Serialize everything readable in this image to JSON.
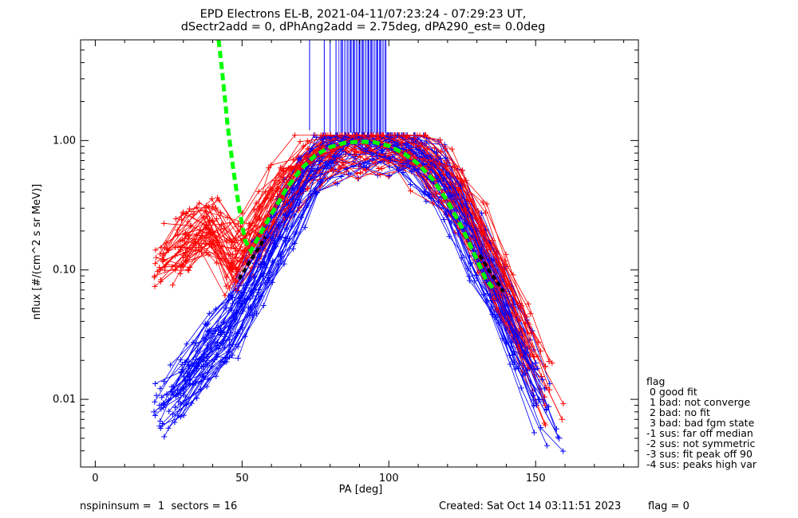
{
  "chart_data": {
    "type": "scatter",
    "title": [
      "EPD Electrons EL-B, 2021-04-11/07:23:24 - 07:29:23 UT,",
      "dSectr2add = 0, dPhAng2add = 2.75deg, dPA290_est=    0.0deg"
    ],
    "xlabel": "PA [deg]",
    "ylabel": "nflux [#/(cm^2 s sr MeV)]",
    "xlim": [
      -5,
      185
    ],
    "ylim": [
      0.003,
      6
    ],
    "yscale": "log",
    "xticks": [
      {
        "value": 0,
        "label": "0"
      },
      {
        "value": 50,
        "label": "50"
      },
      {
        "value": 100,
        "label": "100"
      },
      {
        "value": 150,
        "label": "150"
      }
    ],
    "yticks": [
      {
        "value": 0.01,
        "label": "0.01"
      },
      {
        "value": 0.1,
        "label": "0.10"
      },
      {
        "value": 1,
        "label": "1.00"
      }
    ],
    "grid": false,
    "series": [
      {
        "role": "fit_red",
        "color": "#ff0000",
        "marker": "+",
        "x": [
          22,
          40,
          48,
          55,
          62,
          70,
          78,
          85,
          92,
          100,
          107,
          115,
          123,
          130,
          137,
          145,
          152,
          159
        ],
        "y": [
          0.1,
          0.24,
          0.1,
          0.18,
          0.35,
          0.6,
          0.85,
          0.93,
          0.96,
          0.92,
          0.84,
          0.62,
          0.38,
          0.2,
          0.08,
          0.035,
          0.015,
          0.007
        ]
      },
      {
        "role": "fit_blue",
        "color": "#0000ff",
        "marker": "+",
        "x": [
          20,
          30,
          38,
          46,
          54,
          61,
          69,
          77,
          84,
          91,
          99,
          106,
          114,
          122,
          129,
          137,
          144,
          151,
          158
        ],
        "y": [
          0.008,
          0.012,
          0.02,
          0.035,
          0.07,
          0.16,
          0.35,
          0.7,
          0.92,
          0.98,
          0.95,
          0.85,
          0.62,
          0.34,
          0.15,
          0.06,
          0.025,
          0.01,
          0.005
        ]
      },
      {
        "role": "model_fit",
        "color": "#00ff00",
        "style": "dashed",
        "x": [
          42,
          43,
          44,
          45,
          47,
          49,
          51,
          53,
          55,
          60,
          65,
          70,
          75,
          80,
          85,
          90,
          95,
          100,
          105,
          110,
          115,
          120,
          125,
          130,
          133,
          136
        ],
        "y": [
          6.0,
          3.8,
          2.3,
          1.35,
          0.6,
          0.3,
          0.17,
          0.14,
          0.17,
          0.27,
          0.42,
          0.6,
          0.77,
          0.89,
          0.96,
          0.98,
          0.97,
          0.91,
          0.8,
          0.66,
          0.5,
          0.34,
          0.21,
          0.12,
          0.085,
          0.07
        ]
      },
      {
        "role": "fit_core",
        "color": "#000000",
        "style": "dashed",
        "x": [
          49,
          52,
          55,
          58
        ],
        "y": [
          0.085,
          0.11,
          0.14,
          0.18
        ]
      },
      {
        "role": "fit_core",
        "color": "#000000",
        "style": "dashed",
        "x": [
          131,
          134,
          137,
          139
        ],
        "y": [
          0.13,
          0.1,
          0.08,
          0.068
        ]
      }
    ],
    "saturation_spikes": {
      "color": "#0000ff",
      "x": [
        73,
        78,
        80,
        82,
        84,
        86,
        87,
        88,
        89,
        90,
        91,
        92,
        93,
        94,
        95,
        96,
        97,
        98,
        99
      ],
      "y_low": [
        1.2,
        1.15,
        1.15,
        1.15,
        1.15,
        1.15,
        1.15,
        1.15,
        1.15,
        1.15,
        1.15,
        1.15,
        1.15,
        1.15,
        1.15,
        1.15,
        1.15,
        1.15,
        1.15
      ],
      "y_high": 6
    }
  },
  "legend": {
    "title": "flag",
    "items": [
      " 0 good fit",
      " 1 bad: not converge",
      " 2 bad: no fit",
      " 3 bad: bad fgm state",
      "-1 sus: far off median",
      "-2 sus: not symmetric",
      "-3 sus: fit peak off 90",
      "-4 sus: peaks high var"
    ]
  },
  "footer": {
    "left": "nspininsum =  1  sectors = 16",
    "created": "Created: Sat Oct 14 03:11:51 2023",
    "flag": "flag = 0"
  }
}
